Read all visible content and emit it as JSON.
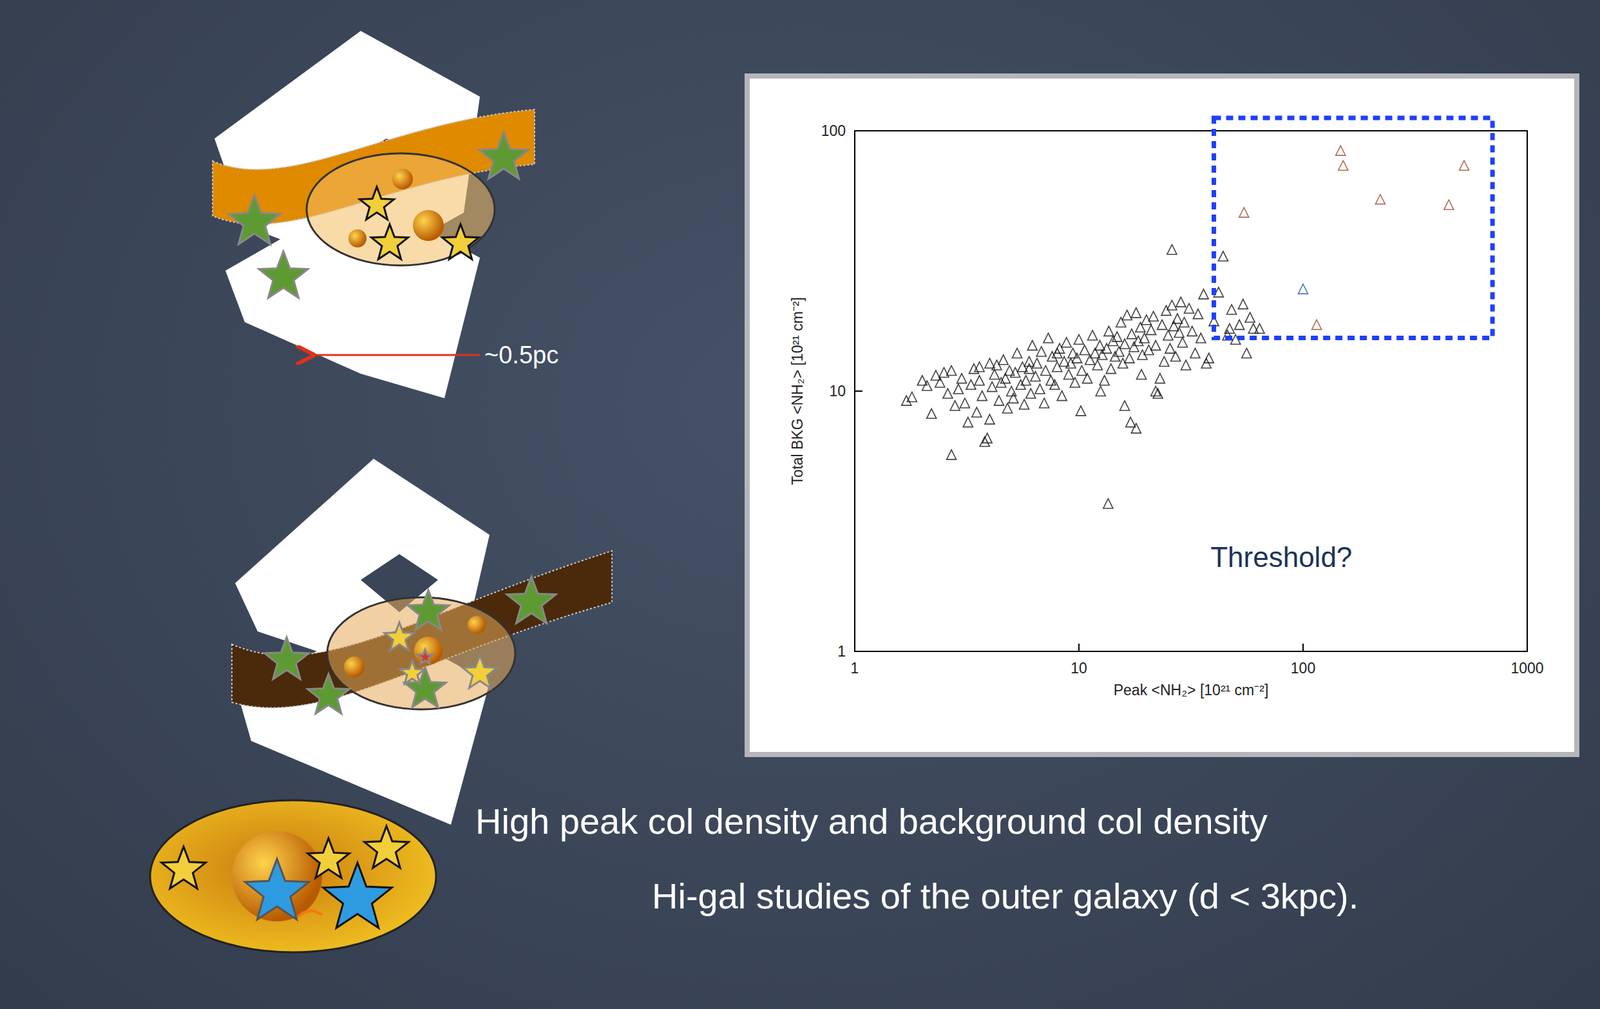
{
  "chart_data": {
    "type": "scatter",
    "xlabel": "Peak <NH₂> [10²¹ cm⁻²]",
    "ylabel": "Total BKG <NH₂> [10²¹ cm⁻²]",
    "log": true,
    "xlim": [
      1,
      1000
    ],
    "ylim": [
      1,
      100
    ],
    "xticks": [
      1,
      10,
      100,
      1000
    ],
    "yticks": [
      1,
      10,
      100
    ],
    "grid": false,
    "marker": "triangle",
    "series": [
      {
        "color": "#111111",
        "x": [
          1.7,
          1.8,
          2.0,
          2.1,
          2.2,
          2.3,
          2.4,
          2.5,
          2.6,
          2.7,
          2.8,
          2.9,
          3.0,
          3.1,
          3.2,
          3.3,
          3.4,
          3.5,
          3.6,
          3.7,
          2.7,
          3.8,
          3.9,
          4.0,
          4.1,
          4.2,
          4.3,
          4.4,
          4.5,
          4.6,
          4.7,
          4.8,
          4.9,
          5.0,
          5.1,
          5.2,
          5.3,
          5.5,
          5.6,
          5.7,
          5.8,
          6.0,
          6.1,
          6.2,
          6.4,
          6.5,
          6.7,
          6.8,
          7.0,
          7.1,
          7.3,
          7.5,
          7.6,
          7.8,
          8.0,
          8.2,
          8.4,
          8.6,
          8.8,
          9.0,
          9.2,
          9.4,
          9.6,
          9.8,
          10,
          10.3,
          10.6,
          10.9,
          11.2,
          11.5,
          11.8,
          12.1,
          12.4,
          12.7,
          13.0,
          13.3,
          13.6,
          13.9,
          14.2,
          14.5,
          14.8,
          15.1,
          15.4,
          15.7,
          16,
          16.4,
          16.8,
          17.2,
          17.6,
          18,
          18.4,
          18.8,
          19.2,
          19.6,
          20,
          20.5,
          21,
          21.5,
          22,
          22.5,
          23,
          23.5,
          24,
          24.5,
          25,
          25.5,
          26,
          26.5,
          27,
          27.5,
          28,
          28.5,
          29,
          29.5,
          30,
          31,
          32,
          33,
          34,
          35,
          36,
          37,
          38,
          40,
          42,
          44,
          46,
          48,
          50,
          52,
          54,
          56,
          58,
          60,
          26,
          13.5,
          16,
          17,
          18,
          12.5,
          10.2,
          19,
          22,
          47,
          64,
          8,
          6,
          3.6,
          4
        ],
        "values": [
          9.2,
          9.5,
          11,
          10.5,
          8.2,
          11.5,
          10.8,
          11.8,
          9.8,
          12,
          8.8,
          10.2,
          11.2,
          9.0,
          7.6,
          10.6,
          12.2,
          8.3,
          11,
          9.6,
          5.7,
          6.4,
          6.6,
          7.8,
          10.4,
          11.6,
          12.6,
          9.2,
          10.8,
          13.2,
          11.2,
          8.6,
          12,
          10,
          9.4,
          11.8,
          14,
          10.6,
          12.4,
          8.9,
          11,
          13,
          9.8,
          15,
          11.4,
          12.8,
          10.2,
          14.2,
          9,
          12,
          16,
          11,
          13.6,
          10.6,
          12.4,
          14.6,
          9.6,
          13,
          15.4,
          11.6,
          12.8,
          14,
          10.8,
          13.4,
          15.8,
          12,
          14.4,
          11.2,
          13.2,
          16.4,
          14,
          12.6,
          15,
          13.8,
          11,
          14.6,
          17,
          12.2,
          15.6,
          13.6,
          16.2,
          14.2,
          18.4,
          12.8,
          15.2,
          19.6,
          13.4,
          16.6,
          14.8,
          20,
          15.6,
          17.6,
          13.8,
          16,
          18.8,
          14.4,
          17.2,
          19.4,
          15,
          9.8,
          11.2,
          18,
          13,
          20.4,
          16.4,
          14.6,
          21.4,
          17.8,
          13.6,
          19,
          16.8,
          22,
          15.4,
          18.4,
          12.6,
          20.8,
          17,
          14,
          19.8,
          16,
          23.6,
          12.8,
          13.4,
          18.6,
          24,
          33,
          16.4,
          20.6,
          15.8,
          18,
          21.6,
          14,
          19.2,
          17.4,
          35,
          3.7,
          8.8,
          7.6,
          7.2,
          10,
          8.4,
          11.6,
          10,
          17.4,
          17.4,
          14,
          12.2,
          12.4,
          12.8
        ]
      },
      {
        "color": "#9c4a28",
        "x": [
          54.5,
          147,
          151,
          221,
          447,
          523,
          115
        ],
        "values": [
          48.6,
          84,
          73.6,
          54.6,
          52,
          73.6,
          18
        ]
      },
      {
        "color": "#2450c0",
        "x": [
          100
        ],
        "values": [
          24.7
        ]
      }
    ],
    "annotations": [
      {
        "text": "Threshold?",
        "x": 80,
        "y": 2.3
      }
    ],
    "threshold_box": {
      "x": [
        40,
        700
      ],
      "y": [
        16,
        112
      ]
    }
  },
  "slide": {
    "scale_label": "~0.5pc",
    "texts": [
      "High peak col density and background col density",
      "Hi-gal studies of the outer galaxy (d < 3kpc)."
    ]
  }
}
